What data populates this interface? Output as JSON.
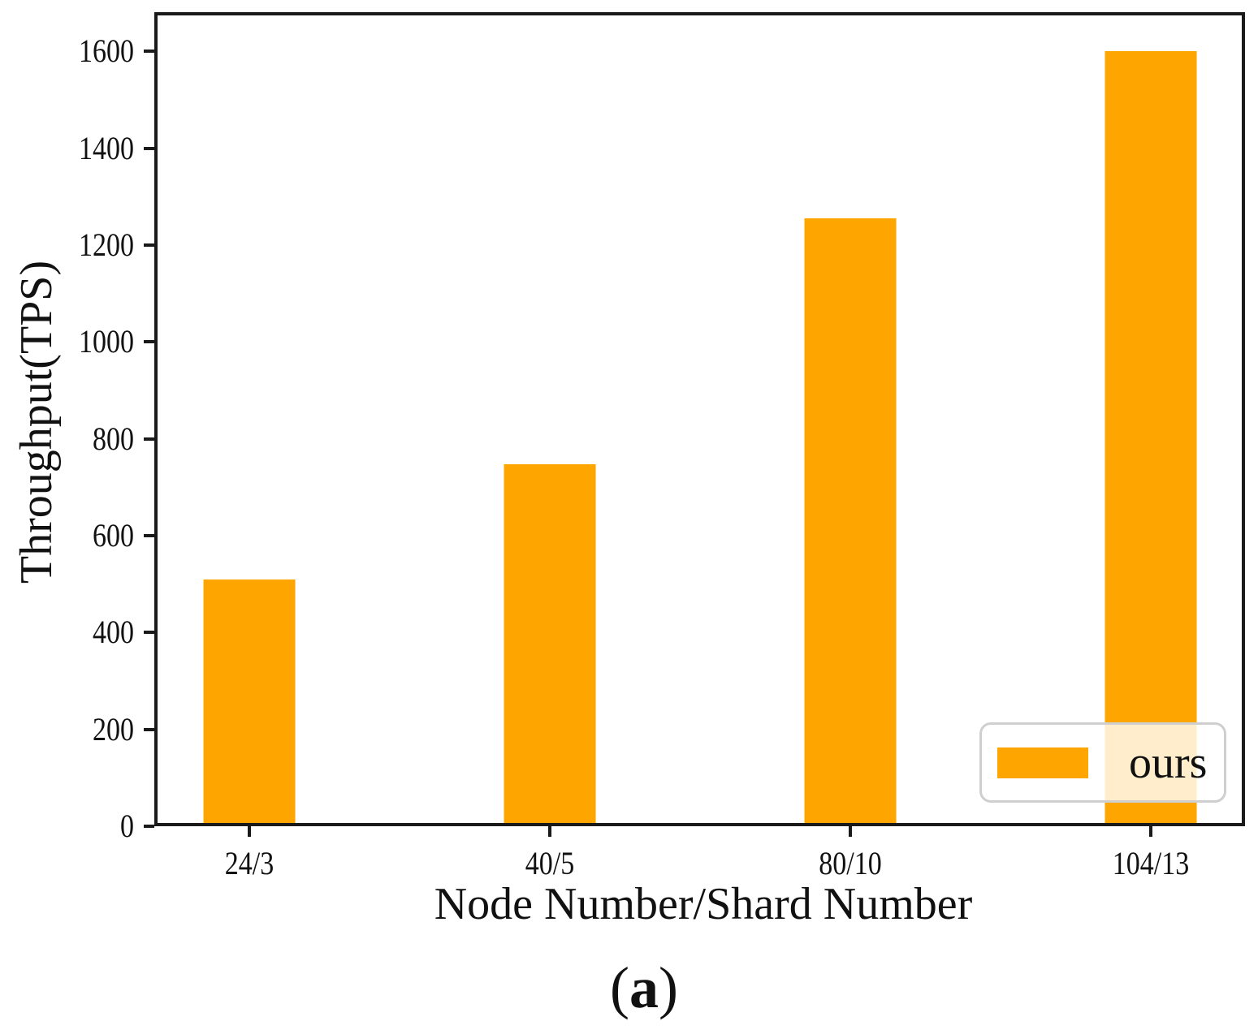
{
  "chart_data": {
    "type": "bar",
    "categories": [
      "24/3",
      "40/5",
      "80/10",
      "104/13"
    ],
    "series": [
      {
        "name": "ours",
        "values": [
          510,
          748,
          1255,
          1600
        ],
        "color": "#FFA500"
      }
    ],
    "title": "",
    "xlabel": "Node Number/Shard Number",
    "ylabel": "Throughput(TPS)",
    "ylim": [
      0,
      1681
    ],
    "yticks": [
      0,
      200,
      400,
      600,
      800,
      1000,
      1200,
      1400,
      1600
    ],
    "grid": false,
    "legend": {
      "label": "ours",
      "position": "lower right",
      "swatch_color": "#FFA500"
    }
  },
  "caption": {
    "open": "(",
    "letter": "a",
    "close": ")"
  },
  "colors": {
    "bar": "#FFA500",
    "axis": "#1a1a1a",
    "text": "#111111",
    "legend_border": "#cfcfcf",
    "legend_background": "rgba(255,255,255,0.8)"
  }
}
